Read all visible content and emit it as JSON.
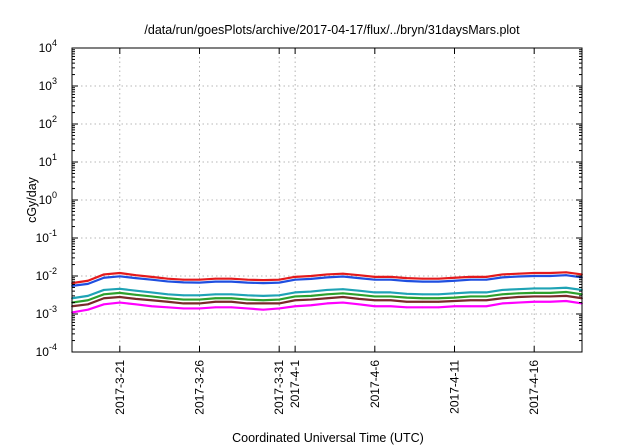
{
  "chart_data": {
    "type": "line",
    "title": "/data/run/goesPlots/archive/2017-04-17/flux/../bryn/31daysMars.plot",
    "xlabel": "Coordinated Universal Time (UTC)",
    "ylabel": "cGy/day",
    "yscale": "log",
    "ylim": [
      0.0001,
      10000
    ],
    "xlim": [
      "2017-03-18",
      "2017-04-19"
    ],
    "grid": true,
    "y_ticks": [
      {
        "value": 0.0001,
        "base": "10",
        "exp": "-4"
      },
      {
        "value": 0.001,
        "base": "10",
        "exp": "-3"
      },
      {
        "value": 0.01,
        "base": "10",
        "exp": "-2"
      },
      {
        "value": 0.1,
        "base": "10",
        "exp": "-1"
      },
      {
        "value": 1,
        "base": "10",
        "exp": "0"
      },
      {
        "value": 10,
        "base": "10",
        "exp": "1"
      },
      {
        "value": 100,
        "base": "10",
        "exp": "2"
      },
      {
        "value": 1000,
        "base": "10",
        "exp": "3"
      },
      {
        "value": 10000,
        "base": "10",
        "exp": "4"
      }
    ],
    "x_ticks": [
      {
        "date": "2017-03-21",
        "label": "2017-3-21"
      },
      {
        "date": "2017-03-26",
        "label": "2017-3-26"
      },
      {
        "date": "2017-03-31",
        "label": "2017-3-31"
      },
      {
        "date": "2017-04-01",
        "label": "2017-4-1"
      },
      {
        "date": "2017-04-06",
        "label": "2017-4-6"
      },
      {
        "date": "2017-04-11",
        "label": "2017-4-11"
      },
      {
        "date": "2017-04-16",
        "label": "2017-4-16"
      }
    ],
    "series": [
      {
        "color": "#e41a1c",
        "values": [
          [
            "2017-03-18",
            0.0065
          ],
          [
            "2017-03-19",
            0.0075
          ],
          [
            "2017-03-20",
            0.011
          ],
          [
            "2017-03-21",
            0.012
          ],
          [
            "2017-03-22",
            0.0105
          ],
          [
            "2017-03-23",
            0.0095
          ],
          [
            "2017-03-24",
            0.0085
          ],
          [
            "2017-03-25",
            0.008
          ],
          [
            "2017-03-26",
            0.008
          ],
          [
            "2017-03-27",
            0.0085
          ],
          [
            "2017-03-28",
            0.0085
          ],
          [
            "2017-03-29",
            0.008
          ],
          [
            "2017-03-30",
            0.0078
          ],
          [
            "2017-03-31",
            0.008
          ],
          [
            "2017-04-01",
            0.0095
          ],
          [
            "2017-04-02",
            0.01
          ],
          [
            "2017-04-03",
            0.011
          ],
          [
            "2017-04-04",
            0.0115
          ],
          [
            "2017-04-05",
            0.0105
          ],
          [
            "2017-04-06",
            0.0095
          ],
          [
            "2017-04-07",
            0.0095
          ],
          [
            "2017-04-08",
            0.0088
          ],
          [
            "2017-04-09",
            0.0085
          ],
          [
            "2017-04-10",
            0.0085
          ],
          [
            "2017-04-11",
            0.009
          ],
          [
            "2017-04-12",
            0.0095
          ],
          [
            "2017-04-13",
            0.0095
          ],
          [
            "2017-04-14",
            0.011
          ],
          [
            "2017-04-15",
            0.0115
          ],
          [
            "2017-04-16",
            0.012
          ],
          [
            "2017-04-17",
            0.012
          ],
          [
            "2017-04-18",
            0.0125
          ],
          [
            "2017-04-19",
            0.011
          ]
        ]
      },
      {
        "color": "#1f4fe0",
        "values": [
          [
            "2017-03-18",
            0.0055
          ],
          [
            "2017-03-19",
            0.0062
          ],
          [
            "2017-03-20",
            0.009
          ],
          [
            "2017-03-21",
            0.0098
          ],
          [
            "2017-03-22",
            0.0088
          ],
          [
            "2017-03-23",
            0.008
          ],
          [
            "2017-03-24",
            0.0072
          ],
          [
            "2017-03-25",
            0.0068
          ],
          [
            "2017-03-26",
            0.0067
          ],
          [
            "2017-03-27",
            0.0071
          ],
          [
            "2017-03-28",
            0.0071
          ],
          [
            "2017-03-29",
            0.0067
          ],
          [
            "2017-03-30",
            0.0065
          ],
          [
            "2017-03-31",
            0.0067
          ],
          [
            "2017-04-01",
            0.008
          ],
          [
            "2017-04-02",
            0.0084
          ],
          [
            "2017-04-03",
            0.0092
          ],
          [
            "2017-04-04",
            0.0097
          ],
          [
            "2017-04-05",
            0.0088
          ],
          [
            "2017-04-06",
            0.008
          ],
          [
            "2017-04-07",
            0.008
          ],
          [
            "2017-04-08",
            0.0074
          ],
          [
            "2017-04-09",
            0.0071
          ],
          [
            "2017-04-10",
            0.0071
          ],
          [
            "2017-04-11",
            0.0075
          ],
          [
            "2017-04-12",
            0.008
          ],
          [
            "2017-04-13",
            0.008
          ],
          [
            "2017-04-14",
            0.0092
          ],
          [
            "2017-04-15",
            0.0097
          ],
          [
            "2017-04-16",
            0.01
          ],
          [
            "2017-04-17",
            0.01
          ],
          [
            "2017-04-18",
            0.0105
          ],
          [
            "2017-04-19",
            0.0092
          ]
        ]
      },
      {
        "color": "#1fa3b5",
        "values": [
          [
            "2017-03-18",
            0.0026
          ],
          [
            "2017-03-19",
            0.003
          ],
          [
            "2017-03-20",
            0.0043
          ],
          [
            "2017-03-21",
            0.0046
          ],
          [
            "2017-03-22",
            0.0041
          ],
          [
            "2017-03-23",
            0.0037
          ],
          [
            "2017-03-24",
            0.0033
          ],
          [
            "2017-03-25",
            0.0031
          ],
          [
            "2017-03-26",
            0.0031
          ],
          [
            "2017-03-27",
            0.0033
          ],
          [
            "2017-03-28",
            0.0033
          ],
          [
            "2017-03-29",
            0.0031
          ],
          [
            "2017-03-30",
            0.003
          ],
          [
            "2017-03-31",
            0.0031
          ],
          [
            "2017-04-01",
            0.0037
          ],
          [
            "2017-04-02",
            0.0039
          ],
          [
            "2017-04-03",
            0.0043
          ],
          [
            "2017-04-04",
            0.0045
          ],
          [
            "2017-04-05",
            0.0041
          ],
          [
            "2017-04-06",
            0.0037
          ],
          [
            "2017-04-07",
            0.0037
          ],
          [
            "2017-04-08",
            0.0034
          ],
          [
            "2017-04-09",
            0.0033
          ],
          [
            "2017-04-10",
            0.0033
          ],
          [
            "2017-04-11",
            0.0035
          ],
          [
            "2017-04-12",
            0.0037
          ],
          [
            "2017-04-13",
            0.0037
          ],
          [
            "2017-04-14",
            0.0043
          ],
          [
            "2017-04-15",
            0.0045
          ],
          [
            "2017-04-16",
            0.0047
          ],
          [
            "2017-04-17",
            0.0047
          ],
          [
            "2017-04-18",
            0.0049
          ],
          [
            "2017-04-19",
            0.0043
          ]
        ]
      },
      {
        "color": "#2ca02c",
        "values": [
          [
            "2017-03-18",
            0.002
          ],
          [
            "2017-03-19",
            0.0023
          ],
          [
            "2017-03-20",
            0.0033
          ],
          [
            "2017-03-21",
            0.0036
          ],
          [
            "2017-03-22",
            0.0032
          ],
          [
            "2017-03-23",
            0.0029
          ],
          [
            "2017-03-24",
            0.0026
          ],
          [
            "2017-03-25",
            0.0024
          ],
          [
            "2017-03-26",
            0.0024
          ],
          [
            "2017-03-27",
            0.0026
          ],
          [
            "2017-03-28",
            0.0026
          ],
          [
            "2017-03-29",
            0.0024
          ],
          [
            "2017-03-30",
            0.0023
          ],
          [
            "2017-03-31",
            0.0024
          ],
          [
            "2017-04-01",
            0.0029
          ],
          [
            "2017-04-02",
            0.003
          ],
          [
            "2017-04-03",
            0.0033
          ],
          [
            "2017-04-04",
            0.0035
          ],
          [
            "2017-04-05",
            0.0032
          ],
          [
            "2017-04-06",
            0.0029
          ],
          [
            "2017-04-07",
            0.0029
          ],
          [
            "2017-04-08",
            0.0027
          ],
          [
            "2017-04-09",
            0.0026
          ],
          [
            "2017-04-10",
            0.0026
          ],
          [
            "2017-04-11",
            0.0027
          ],
          [
            "2017-04-12",
            0.0029
          ],
          [
            "2017-04-13",
            0.0029
          ],
          [
            "2017-04-14",
            0.0033
          ],
          [
            "2017-04-15",
            0.0035
          ],
          [
            "2017-04-16",
            0.0036
          ],
          [
            "2017-04-17",
            0.0036
          ],
          [
            "2017-04-18",
            0.0038
          ],
          [
            "2017-04-19",
            0.0033
          ]
        ]
      },
      {
        "color": "#7a2a2a",
        "values": [
          [
            "2017-03-18",
            0.0016
          ],
          [
            "2017-03-19",
            0.0018
          ],
          [
            "2017-03-20",
            0.0026
          ],
          [
            "2017-03-21",
            0.0028
          ],
          [
            "2017-03-22",
            0.0025
          ],
          [
            "2017-03-23",
            0.0023
          ],
          [
            "2017-03-24",
            0.0021
          ],
          [
            "2017-03-25",
            0.0019
          ],
          [
            "2017-03-26",
            0.0019
          ],
          [
            "2017-03-27",
            0.0021
          ],
          [
            "2017-03-28",
            0.0021
          ],
          [
            "2017-03-29",
            0.0019
          ],
          [
            "2017-03-30",
            0.0019
          ],
          [
            "2017-03-31",
            0.0019
          ],
          [
            "2017-04-01",
            0.0023
          ],
          [
            "2017-04-02",
            0.0024
          ],
          [
            "2017-04-03",
            0.0026
          ],
          [
            "2017-04-04",
            0.0028
          ],
          [
            "2017-04-05",
            0.0025
          ],
          [
            "2017-04-06",
            0.0023
          ],
          [
            "2017-04-07",
            0.0023
          ],
          [
            "2017-04-08",
            0.0021
          ],
          [
            "2017-04-09",
            0.0021
          ],
          [
            "2017-04-10",
            0.0021
          ],
          [
            "2017-04-11",
            0.0022
          ],
          [
            "2017-04-12",
            0.0023
          ],
          [
            "2017-04-13",
            0.0023
          ],
          [
            "2017-04-14",
            0.0026
          ],
          [
            "2017-04-15",
            0.0028
          ],
          [
            "2017-04-16",
            0.0029
          ],
          [
            "2017-04-17",
            0.0029
          ],
          [
            "2017-04-18",
            0.003
          ],
          [
            "2017-04-19",
            0.0026
          ]
        ]
      },
      {
        "color": "#ff00ff",
        "values": [
          [
            "2017-03-18",
            0.0011
          ],
          [
            "2017-03-19",
            0.0013
          ],
          [
            "2017-03-20",
            0.0018
          ],
          [
            "2017-03-21",
            0.002
          ],
          [
            "2017-03-22",
            0.0018
          ],
          [
            "2017-03-23",
            0.0016
          ],
          [
            "2017-03-24",
            0.0015
          ],
          [
            "2017-03-25",
            0.0014
          ],
          [
            "2017-03-26",
            0.0014
          ],
          [
            "2017-03-27",
            0.0015
          ],
          [
            "2017-03-28",
            0.0015
          ],
          [
            "2017-03-29",
            0.0014
          ],
          [
            "2017-03-30",
            0.0013
          ],
          [
            "2017-03-31",
            0.0014
          ],
          [
            "2017-04-01",
            0.0016
          ],
          [
            "2017-04-02",
            0.0017
          ],
          [
            "2017-04-03",
            0.0019
          ],
          [
            "2017-04-04",
            0.002
          ],
          [
            "2017-04-05",
            0.0018
          ],
          [
            "2017-04-06",
            0.0016
          ],
          [
            "2017-04-07",
            0.0016
          ],
          [
            "2017-04-08",
            0.0015
          ],
          [
            "2017-04-09",
            0.0015
          ],
          [
            "2017-04-10",
            0.0015
          ],
          [
            "2017-04-11",
            0.0016
          ],
          [
            "2017-04-12",
            0.0016
          ],
          [
            "2017-04-13",
            0.0016
          ],
          [
            "2017-04-14",
            0.0019
          ],
          [
            "2017-04-15",
            0.002
          ],
          [
            "2017-04-16",
            0.0021
          ],
          [
            "2017-04-17",
            0.0021
          ],
          [
            "2017-04-18",
            0.0022
          ],
          [
            "2017-04-19",
            0.0019
          ]
        ]
      }
    ]
  }
}
